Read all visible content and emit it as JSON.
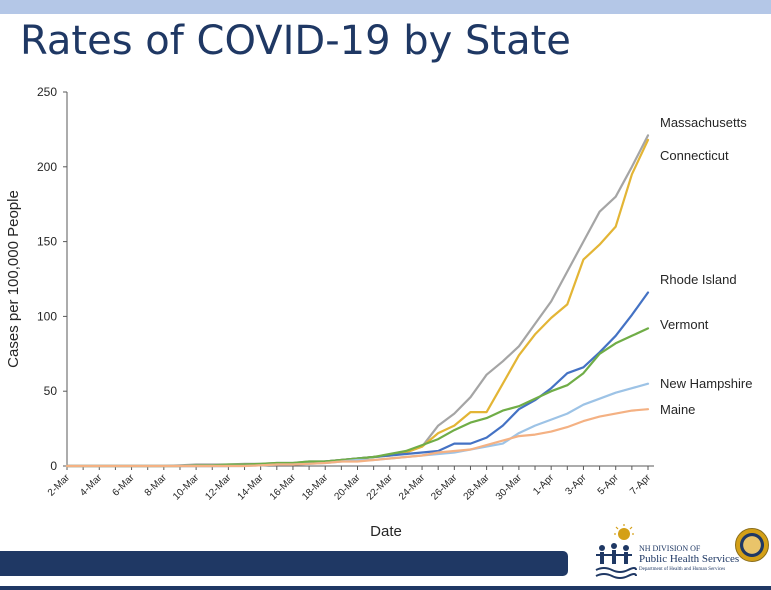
{
  "page": {
    "title": "Rates of COVID-19 by State"
  },
  "logo": {
    "line1": "NH DIVISION OF",
    "line2": "Public Health Services",
    "line3": "Department of Health and Human Services"
  },
  "colors": {
    "title": "#1f3864",
    "top_bar": "#b4c7e7",
    "footer": "#1f3864",
    "axis": "#595959",
    "text": "#262626"
  },
  "chart_data": {
    "type": "line",
    "title": "",
    "xlabel": "Date",
    "ylabel": "Cases per 100,000 People",
    "ylim": [
      0,
      250
    ],
    "yticks": [
      0,
      50,
      100,
      150,
      200,
      250
    ],
    "grid": false,
    "legend": "inline-right",
    "x": [
      "2-Mar",
      "3-Mar",
      "4-Mar",
      "5-Mar",
      "6-Mar",
      "7-Mar",
      "8-Mar",
      "9-Mar",
      "10-Mar",
      "11-Mar",
      "12-Mar",
      "13-Mar",
      "14-Mar",
      "15-Mar",
      "16-Mar",
      "17-Mar",
      "18-Mar",
      "19-Mar",
      "20-Mar",
      "21-Mar",
      "22-Mar",
      "23-Mar",
      "24-Mar",
      "25-Mar",
      "26-Mar",
      "27-Mar",
      "28-Mar",
      "29-Mar",
      "30-Mar",
      "31-Mar",
      "1-Apr",
      "2-Apr",
      "3-Apr",
      "4-Apr",
      "5-Apr",
      "6-Apr",
      "7-Apr"
    ],
    "xtick_labels": [
      "2-Mar",
      "4-Mar",
      "6-Mar",
      "8-Mar",
      "10-Mar",
      "12-Mar",
      "14-Mar",
      "16-Mar",
      "18-Mar",
      "20-Mar",
      "22-Mar",
      "24-Mar",
      "26-Mar",
      "28-Mar",
      "30-Mar",
      "1-Apr",
      "3-Apr",
      "5-Apr",
      "7-Apr"
    ],
    "series": [
      {
        "name": "Massachusetts",
        "color": "#a5a5a5",
        "values": [
          0,
          0,
          0,
          0,
          0,
          0,
          0,
          0.5,
          1,
          1,
          1,
          1.5,
          1.5,
          2,
          2,
          3,
          3,
          4,
          5,
          6,
          7,
          9,
          13,
          27,
          35,
          46,
          61,
          70,
          80,
          95,
          110,
          130,
          150,
          170,
          180,
          200,
          221
        ]
      },
      {
        "name": "Connecticut",
        "color": "#e3b535",
        "values": [
          0,
          0,
          0,
          0,
          0,
          0,
          0,
          0,
          0,
          0,
          0.5,
          1,
          1,
          1,
          1.5,
          2,
          3,
          4,
          5,
          6,
          7,
          9,
          13,
          22,
          27,
          36,
          36,
          55,
          74,
          88,
          99,
          108,
          138,
          148,
          160,
          195,
          218
        ]
      },
      {
        "name": "Rhode Island",
        "color": "#4472c4",
        "values": [
          0,
          0,
          0,
          0,
          0,
          0,
          0,
          0,
          0,
          0,
          0,
          1,
          1,
          1,
          1,
          2,
          3,
          4,
          5,
          6,
          7,
          8,
          9,
          10,
          15,
          15,
          19,
          27,
          38,
          44,
          52,
          62,
          66,
          76,
          87,
          101,
          116
        ]
      },
      {
        "name": "Vermont",
        "color": "#70ad47",
        "values": [
          0,
          0,
          0,
          0,
          0,
          0,
          0,
          0,
          0.5,
          0.5,
          1,
          1,
          1.5,
          2,
          2,
          3,
          3,
          4,
          5,
          6,
          8,
          10,
          14,
          18,
          24,
          29,
          32,
          37,
          40,
          45,
          50,
          54,
          62,
          75,
          82,
          87,
          92
        ]
      },
      {
        "name": "New Hampshire",
        "color": "#9dc3e6",
        "values": [
          0,
          0,
          0,
          0,
          0,
          0,
          0,
          0,
          0,
          0,
          0,
          0,
          0.5,
          1,
          1,
          1.5,
          2,
          3,
          4,
          4,
          5,
          6,
          7,
          8,
          9,
          11,
          13,
          15,
          22,
          27,
          31,
          35,
          41,
          45,
          49,
          52,
          55
        ]
      },
      {
        "name": "Maine",
        "color": "#f4b183",
        "values": [
          0,
          0,
          0,
          0,
          0,
          0,
          0,
          0,
          0,
          0,
          0,
          0,
          0.5,
          1,
          1,
          1.5,
          2,
          3,
          3,
          4,
          5,
          6,
          7,
          9,
          10,
          11,
          14,
          17,
          20,
          21,
          23,
          26,
          30,
          33,
          35,
          37,
          38
        ]
      }
    ]
  }
}
